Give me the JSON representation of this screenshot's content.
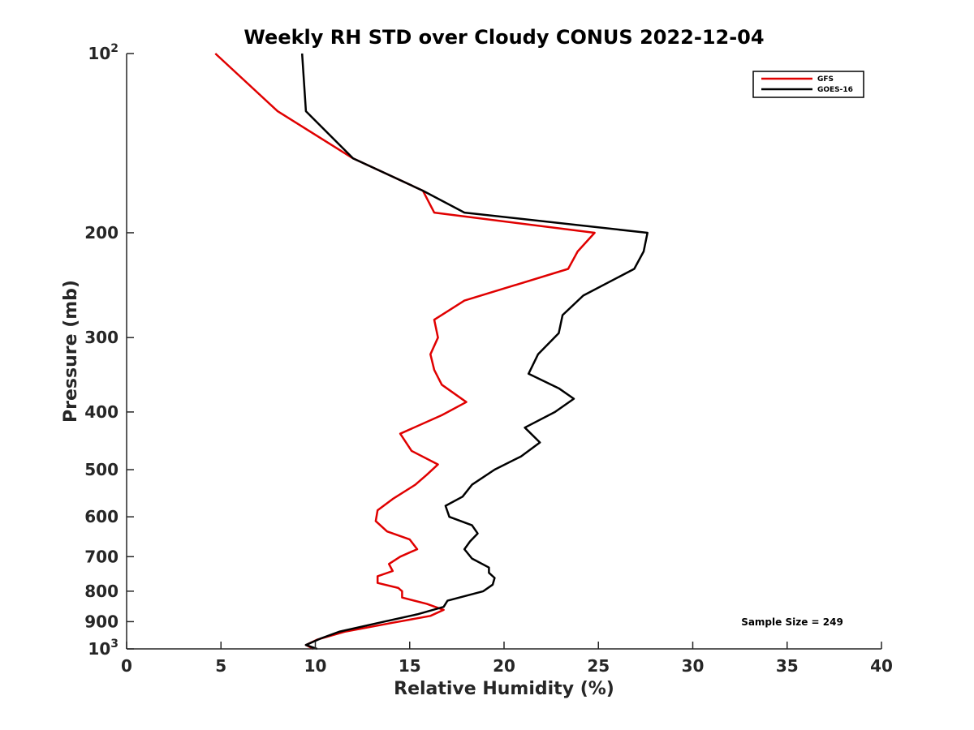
{
  "chart_data": {
    "type": "line",
    "title": "Weekly RH STD over Cloudy CONUS 2022-12-04",
    "xlabel": "Relative Humidity (%)",
    "ylabel": "Pressure (mb)",
    "xlim": [
      0,
      40
    ],
    "ylim": [
      100,
      1000
    ],
    "y_scale": "log",
    "y_reversed": true,
    "grid": false,
    "legend_position": "top-right",
    "x_ticks": [
      "0",
      "5",
      "10",
      "15",
      "20",
      "25",
      "30",
      "35",
      "40"
    ],
    "y_ticks": [
      {
        "value": 100,
        "base": "10",
        "exp": "2"
      },
      {
        "value": 200,
        "label": "200"
      },
      {
        "value": 300,
        "label": "300"
      },
      {
        "value": 400,
        "label": "400"
      },
      {
        "value": 500,
        "label": "500"
      },
      {
        "value": 600,
        "label": "600"
      },
      {
        "value": 700,
        "label": "700"
      },
      {
        "value": 800,
        "label": "800"
      },
      {
        "value": 900,
        "label": "900"
      },
      {
        "value": 1000,
        "base": "10",
        "exp": "3"
      }
    ],
    "annotation": "Sample Size = 249",
    "series": [
      {
        "name": "GFS",
        "color": "#e00000",
        "points": [
          [
            4.7,
            100
          ],
          [
            8.0,
            125
          ],
          [
            12.0,
            150
          ],
          [
            15.7,
            170
          ],
          [
            16.3,
            185
          ],
          [
            24.8,
            200
          ],
          [
            23.9,
            215
          ],
          [
            23.4,
            230
          ],
          [
            17.9,
            260
          ],
          [
            16.3,
            280
          ],
          [
            16.5,
            300
          ],
          [
            16.1,
            320
          ],
          [
            16.3,
            340
          ],
          [
            16.7,
            360
          ],
          [
            18.0,
            385
          ],
          [
            16.7,
            405
          ],
          [
            14.5,
            435
          ],
          [
            15.1,
            465
          ],
          [
            16.5,
            490
          ],
          [
            15.9,
            510
          ],
          [
            15.3,
            530
          ],
          [
            14.1,
            560
          ],
          [
            13.3,
            585
          ],
          [
            13.2,
            610
          ],
          [
            13.8,
            635
          ],
          [
            15.0,
            655
          ],
          [
            15.4,
            680
          ],
          [
            14.5,
            700
          ],
          [
            13.9,
            720
          ],
          [
            14.1,
            740
          ],
          [
            13.3,
            755
          ],
          [
            13.3,
            775
          ],
          [
            14.4,
            790
          ],
          [
            14.6,
            800
          ],
          [
            14.6,
            820
          ],
          [
            15.9,
            840
          ],
          [
            16.8,
            860
          ],
          [
            16.1,
            880
          ],
          [
            14.0,
            905
          ],
          [
            11.6,
            935
          ],
          [
            10.1,
            965
          ],
          [
            9.5,
            985
          ],
          [
            9.9,
            1000
          ]
        ]
      },
      {
        "name": "GOES-16",
        "color": "#000000",
        "points": [
          [
            9.3,
            100
          ],
          [
            9.5,
            125
          ],
          [
            12.0,
            150
          ],
          [
            15.7,
            170
          ],
          [
            17.9,
            185
          ],
          [
            27.6,
            200
          ],
          [
            27.4,
            215
          ],
          [
            26.9,
            230
          ],
          [
            24.2,
            255
          ],
          [
            23.1,
            275
          ],
          [
            22.9,
            295
          ],
          [
            21.8,
            320
          ],
          [
            21.3,
            345
          ],
          [
            22.9,
            365
          ],
          [
            23.7,
            380
          ],
          [
            22.7,
            400
          ],
          [
            21.1,
            425
          ],
          [
            21.9,
            450
          ],
          [
            20.9,
            475
          ],
          [
            19.5,
            500
          ],
          [
            18.3,
            530
          ],
          [
            17.8,
            555
          ],
          [
            16.9,
            575
          ],
          [
            17.1,
            600
          ],
          [
            18.3,
            620
          ],
          [
            18.6,
            640
          ],
          [
            18.2,
            660
          ],
          [
            17.9,
            680
          ],
          [
            18.3,
            705
          ],
          [
            19.2,
            730
          ],
          [
            19.2,
            745
          ],
          [
            19.5,
            760
          ],
          [
            19.4,
            780
          ],
          [
            18.9,
            800
          ],
          [
            17.0,
            830
          ],
          [
            16.8,
            850
          ],
          [
            15.4,
            875
          ],
          [
            13.3,
            905
          ],
          [
            11.3,
            935
          ],
          [
            10.3,
            960
          ],
          [
            9.5,
            985
          ],
          [
            10.1,
            1000
          ]
        ]
      }
    ]
  }
}
